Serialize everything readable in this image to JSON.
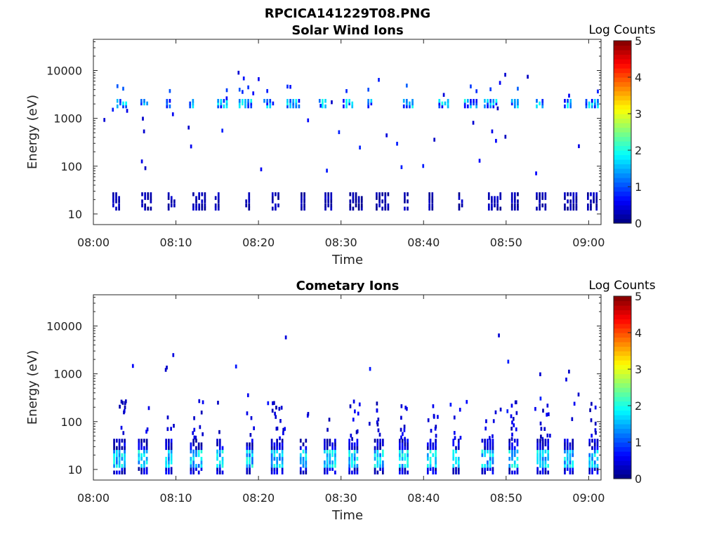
{
  "figure_title": "RPCICA141229T08.PNG",
  "colors": {
    "colormap": [
      "#00007f",
      "#0000ff",
      "#007fff",
      "#00ffff",
      "#7fff7f",
      "#ffff00",
      "#ff7f00",
      "#ff0000",
      "#7f0000"
    ]
  },
  "chart_data": [
    {
      "type": "heatmap",
      "title": "Solar Wind Ions",
      "xlabel": "Time",
      "ylabel": "Energy (eV)",
      "x_ticks": [
        "08:00",
        "08:10",
        "08:20",
        "08:30",
        "08:40",
        "08:50",
        "09:00"
      ],
      "x_range_minutes": [
        0,
        61.5
      ],
      "y_scale": "log",
      "y_range": [
        6,
        45000
      ],
      "y_ticks": [
        10,
        100,
        1000,
        10000
      ],
      "y_tick_labels": [
        "10",
        "100",
        "1000",
        "10000"
      ],
      "colorbar": {
        "label": "Log Counts",
        "range": [
          0,
          5
        ],
        "ticks": [
          "0",
          "1",
          "2",
          "3",
          "4",
          "5"
        ]
      },
      "bursts": [
        {
          "t": 2.8,
          "band": "high"
        },
        {
          "t": 5.7,
          "band": "high"
        },
        {
          "t": 8.8,
          "band": "high"
        },
        {
          "t": 11.6,
          "band": "high"
        },
        {
          "t": 15.0,
          "band": "high"
        },
        {
          "t": 17.6,
          "band": "high"
        },
        {
          "t": 20.6,
          "band": "high"
        },
        {
          "t": 23.4,
          "band": "high"
        },
        {
          "t": 27.3,
          "band": "high"
        },
        {
          "t": 30.2,
          "band": "high"
        },
        {
          "t": 33.2,
          "band": "high"
        },
        {
          "t": 37.5,
          "band": "high"
        },
        {
          "t": 41.8,
          "band": "high"
        },
        {
          "t": 44.9,
          "band": "high"
        },
        {
          "t": 47.3,
          "band": "high"
        },
        {
          "t": 50.6,
          "band": "high"
        },
        {
          "t": 53.6,
          "band": "high"
        },
        {
          "t": 57.0,
          "band": "high"
        },
        {
          "t": 59.6,
          "band": "high"
        },
        {
          "t": 2.3,
          "band": "low"
        },
        {
          "t": 5.8,
          "band": "low"
        },
        {
          "t": 9.0,
          "band": "low"
        },
        {
          "t": 12.0,
          "band": "low"
        },
        {
          "t": 14.7,
          "band": "low"
        },
        {
          "t": 18.4,
          "band": "low"
        },
        {
          "t": 21.6,
          "band": "low"
        },
        {
          "t": 25.1,
          "band": "low"
        },
        {
          "t": 28.0,
          "band": "low"
        },
        {
          "t": 31.0,
          "band": "low"
        },
        {
          "t": 34.2,
          "band": "low"
        },
        {
          "t": 37.6,
          "band": "low"
        },
        {
          "t": 40.6,
          "band": "low"
        },
        {
          "t": 44.2,
          "band": "low"
        },
        {
          "t": 47.8,
          "band": "low"
        },
        {
          "t": 50.6,
          "band": "low"
        },
        {
          "t": 53.6,
          "band": "low"
        },
        {
          "t": 57.0,
          "band": "low"
        },
        {
          "t": 59.8,
          "band": "low"
        }
      ]
    },
    {
      "type": "heatmap",
      "title": "Cometary Ions",
      "xlabel": "Time",
      "ylabel": "Energy (eV)",
      "x_ticks": [
        "08:00",
        "08:10",
        "08:20",
        "08:30",
        "08:40",
        "08:50",
        "09:00"
      ],
      "x_range_minutes": [
        0,
        61.5
      ],
      "y_scale": "log",
      "y_range": [
        6,
        45000
      ],
      "y_ticks": [
        10,
        100,
        1000,
        10000
      ],
      "y_tick_labels": [
        "10",
        "100",
        "1000",
        "10000"
      ],
      "colorbar": {
        "label": "Log Counts",
        "range": [
          0,
          5
        ],
        "ticks": [
          "0",
          "1",
          "2",
          "3",
          "4",
          "5"
        ]
      },
      "bursts": [
        {
          "t": 2.4
        },
        {
          "t": 5.4
        },
        {
          "t": 8.7
        },
        {
          "t": 11.7
        },
        {
          "t": 14.9
        },
        {
          "t": 18.5
        },
        {
          "t": 21.5
        },
        {
          "t": 25.0
        },
        {
          "t": 27.9
        },
        {
          "t": 30.9
        },
        {
          "t": 34.0
        },
        {
          "t": 37.0
        },
        {
          "t": 40.4
        },
        {
          "t": 43.5
        },
        {
          "t": 47.0
        },
        {
          "t": 50.3
        },
        {
          "t": 53.7
        },
        {
          "t": 57.0
        },
        {
          "t": 60.0
        }
      ]
    }
  ]
}
